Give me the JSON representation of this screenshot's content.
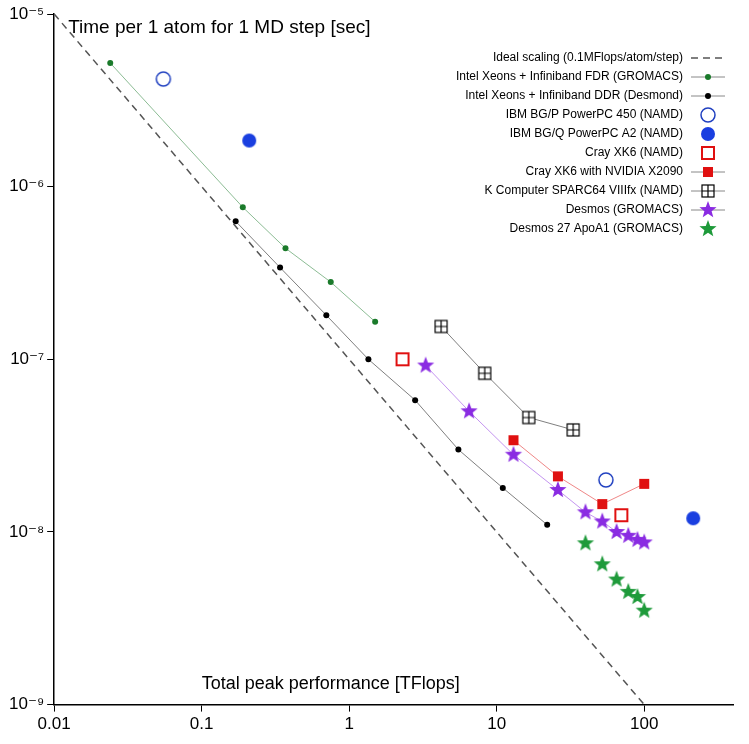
{
  "chart_data": {
    "type": "scatter",
    "title": "Time per 1 atom for 1 MD step [sec]",
    "x_label": "Total peak performance [TFlops]",
    "log": true,
    "grid": false,
    "legend": "top-right",
    "xlim": [
      0.01,
      400
    ],
    "ylim": [
      1e-09,
      1e-05
    ],
    "xticks": [
      0.01,
      0.1,
      1,
      10,
      100
    ],
    "yticks": [
      {
        "value": 1e-09,
        "label": "10⁻⁹"
      },
      {
        "value": 1e-08,
        "label": "10⁻⁸"
      },
      {
        "value": 1e-07,
        "label": "10⁻⁷"
      },
      {
        "value": 1e-06,
        "label": "10⁻⁶"
      },
      {
        "value": 1e-05,
        "label": "10⁻⁵"
      }
    ],
    "series": [
      {
        "name": "Ideal scaling (0.1MFlops/atom/step)",
        "color": "#555555",
        "marker": "none",
        "line_style": "dashed",
        "x": [
          0.01,
          100
        ],
        "values": [
          1e-05,
          1e-09
        ]
      },
      {
        "name": "Intel Xeons + Infiniband FDR (GROMACS)",
        "color": "#1a7a2a",
        "marker": "dot",
        "line_style": "solid",
        "x": [
          0.024,
          0.19,
          0.37,
          0.75,
          1.5
        ],
        "values": [
          5.2e-06,
          7.6e-07,
          4.4e-07,
          2.8e-07,
          1.65e-07
        ]
      },
      {
        "name": "Intel Xeons + Infiniband DDR (Desmond)",
        "color": "#000000",
        "marker": "dot",
        "line_style": "solid",
        "x": [
          0.17,
          0.34,
          0.7,
          1.35,
          2.8,
          5.5,
          11,
          22
        ],
        "values": [
          6.3e-07,
          3.4e-07,
          1.8e-07,
          1e-07,
          5.8e-08,
          3e-08,
          1.8e-08,
          1.1e-08
        ]
      },
      {
        "name": "IBM BG/P PowerPC 450 (NAMD)",
        "color": "#2040c0",
        "marker": "circle_open",
        "line_style": "none",
        "x": [
          0.055,
          55
        ],
        "values": [
          4.2e-06,
          2e-08
        ]
      },
      {
        "name": "IBM BG/Q PowerPC A2 (NAMD)",
        "color": "#1a3fe0",
        "marker": "circle",
        "line_style": "none",
        "x": [
          0.21,
          215
        ],
        "values": [
          1.85e-06,
          1.2e-08
        ]
      },
      {
        "name": "Cray XK6 (NAMD)",
        "color": "#e01010",
        "marker": "square_open",
        "line_style": "none",
        "x": [
          2.3,
          70
        ],
        "values": [
          1e-07,
          1.25e-08
        ]
      },
      {
        "name": "Cray XK6 with NVIDIA X2090",
        "color": "#e01010",
        "marker": "square",
        "line_style": "solid",
        "x": [
          13,
          26,
          52,
          100
        ],
        "values": [
          3.4e-08,
          2.1e-08,
          1.45e-08,
          1.9e-08
        ]
      },
      {
        "name": "K Computer SPARC64 VIIIfx (NAMD)",
        "color": "#000000",
        "marker": "square_cross",
        "line_style": "solid",
        "x": [
          4.2,
          8.3,
          16.5,
          33
        ],
        "values": [
          1.55e-07,
          8.3e-08,
          4.6e-08,
          3.9e-08
        ]
      },
      {
        "name": "Desmos (GROMACS)",
        "color": "#8a2be2",
        "marker": "star",
        "line_style": "solid",
        "x": [
          3.3,
          6.5,
          13,
          26,
          40,
          52,
          65,
          78,
          90,
          100
        ],
        "values": [
          9.2e-08,
          5e-08,
          2.8e-08,
          1.75e-08,
          1.3e-08,
          1.15e-08,
          1e-08,
          9.5e-09,
          9e-09,
          8.7e-09
        ]
      },
      {
        "name": "Desmos 27 ApoA1 (GROMACS)",
        "color": "#1e9a3a",
        "marker": "star",
        "line_style": "none",
        "x": [
          40,
          52,
          65,
          78,
          90,
          100
        ],
        "values": [
          8.6e-09,
          6.5e-09,
          5.3e-09,
          4.5e-09,
          4.2e-09,
          3.5e-09
        ]
      }
    ]
  }
}
